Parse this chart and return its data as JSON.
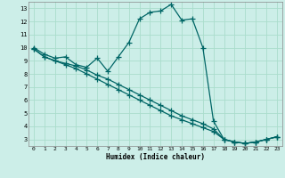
{
  "xlabel": "Humidex (Indice chaleur)",
  "bg_color": "#cceee8",
  "grid_color": "#aaddcc",
  "line_color": "#006666",
  "xlim": [
    -0.5,
    23.5
  ],
  "ylim": [
    2.5,
    13.5
  ],
  "yticks": [
    3,
    4,
    5,
    6,
    7,
    8,
    9,
    10,
    11,
    12,
    13
  ],
  "xticks": [
    0,
    1,
    2,
    3,
    4,
    5,
    6,
    7,
    8,
    9,
    10,
    11,
    12,
    13,
    14,
    15,
    16,
    17,
    18,
    19,
    20,
    21,
    22,
    23
  ],
  "line1_x": [
    0,
    1,
    2,
    3,
    4,
    5,
    6,
    7,
    8,
    9,
    10,
    11,
    12,
    13,
    14,
    15,
    16,
    17,
    18,
    19,
    20,
    21,
    22,
    23
  ],
  "line1_y": [
    10.0,
    9.5,
    9.2,
    9.3,
    8.7,
    8.5,
    9.2,
    8.2,
    9.3,
    10.4,
    12.2,
    12.7,
    12.8,
    13.3,
    12.1,
    12.2,
    10.0,
    4.4,
    3.0,
    2.8,
    2.7,
    2.8,
    3.0,
    3.2
  ],
  "line2_x": [
    0,
    1,
    2,
    3,
    4,
    5,
    6,
    7,
    8,
    9,
    10,
    11,
    12,
    13,
    14,
    15,
    16,
    17,
    18,
    19,
    20,
    21,
    22,
    23
  ],
  "line2_y": [
    9.9,
    9.3,
    9.0,
    8.8,
    8.6,
    8.3,
    7.9,
    7.6,
    7.2,
    6.8,
    6.4,
    6.0,
    5.6,
    5.2,
    4.8,
    4.5,
    4.2,
    3.8,
    3.0,
    2.8,
    2.7,
    2.8,
    3.0,
    3.2
  ],
  "line3_x": [
    0,
    1,
    2,
    3,
    4,
    5,
    6,
    7,
    8,
    9,
    10,
    11,
    12,
    13,
    14,
    15,
    16,
    17,
    18,
    19,
    20,
    21,
    22,
    23
  ],
  "line3_y": [
    9.9,
    9.3,
    9.0,
    8.7,
    8.4,
    8.0,
    7.6,
    7.2,
    6.8,
    6.4,
    6.0,
    5.6,
    5.2,
    4.8,
    4.5,
    4.2,
    3.9,
    3.6,
    3.0,
    2.8,
    2.7,
    2.8,
    3.0,
    3.2
  ]
}
